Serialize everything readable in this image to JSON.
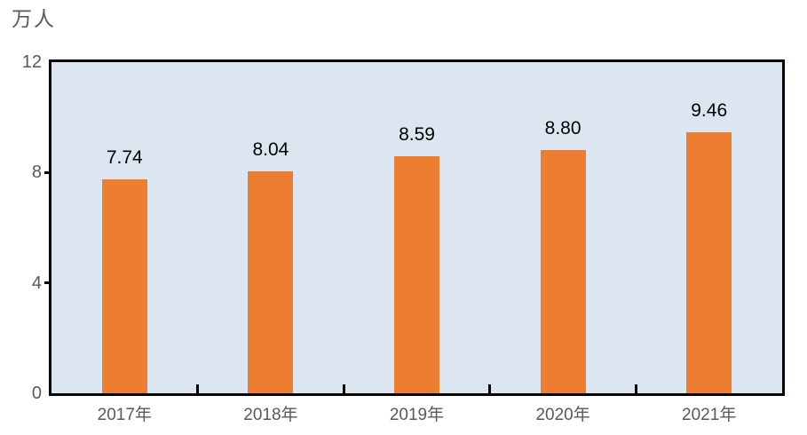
{
  "chart_data": {
    "type": "bar",
    "title": "",
    "unit_label": "万人",
    "categories": [
      "2017年",
      "2018年",
      "2019年",
      "2020年",
      "2021年"
    ],
    "values": [
      7.74,
      8.04,
      8.59,
      8.8,
      9.46
    ],
    "data_labels": [
      "7.74",
      "8.04",
      "8.59",
      "8.80",
      "9.46"
    ],
    "xlabel": "",
    "ylabel": "万人",
    "ylim": [
      0,
      12
    ],
    "yticks": [
      0,
      4,
      8,
      12
    ],
    "grid": false,
    "legend": "none",
    "colors": {
      "bar": "#ED7D31",
      "plot_background": "#DCE6F1",
      "axis_line": "#000000",
      "axis_text": "#595959",
      "data_label_text": "#000000",
      "page_background": "#FFFFFF"
    }
  }
}
